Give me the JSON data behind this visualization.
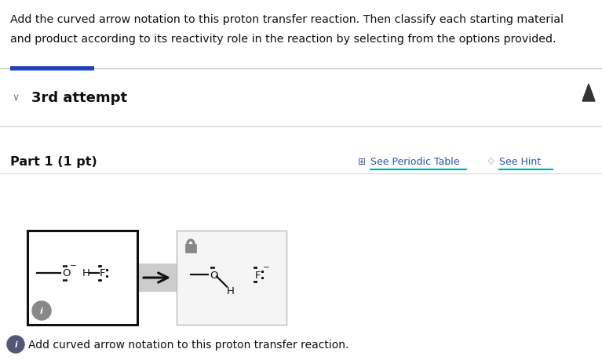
{
  "bg_color": "#ffffff",
  "title_text1": "Add the curved arrow notation to this proton transfer reaction. Then classify each starting material",
  "title_text2": "and product according to its reactivity role in the reaction by selecting from the options provided.",
  "attempt_label": "3rd attempt",
  "part_label": "Part 1 (1 pt)",
  "periodic_table_label": "See Periodic Table",
  "hint_label": "See Hint",
  "footer_label": "Add curved arrow notation to this proton transfer reaction.",
  "blue_accent_color": "#1a3fcc",
  "teal_underline_color": "#00aaaa",
  "separator_color": "#dddddd",
  "text_color": "#111111",
  "blue_link_color": "#2255cc",
  "gray_bg": "#e0e0e0",
  "box1_border": "#111111",
  "box2_border": "#cccccc",
  "box2_bg": "#f5f5f5"
}
